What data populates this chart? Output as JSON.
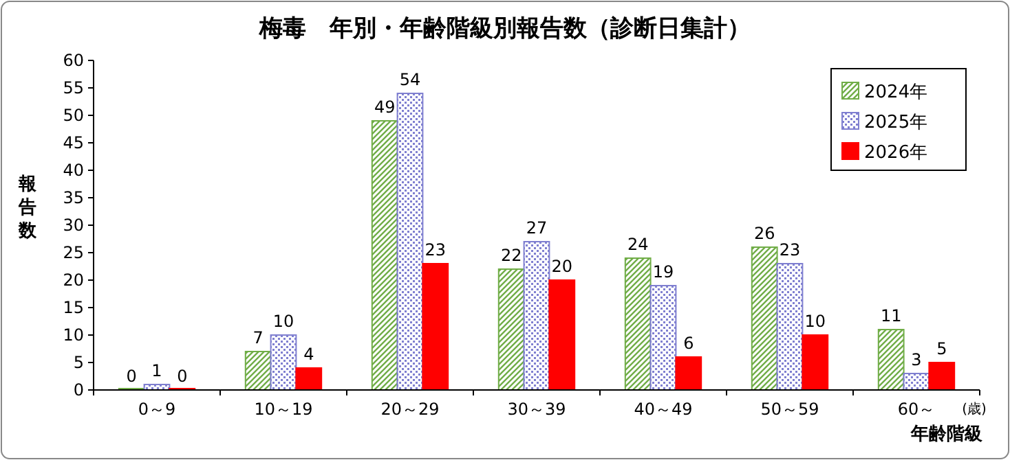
{
  "chart_data": {
    "type": "bar",
    "title": "梅毒　年別・年齢階級別報告数（診断日集計）",
    "xlabel": "年齢階級",
    "ylabel": "報告数",
    "annotations": [
      "(歳)"
    ],
    "categories": [
      "0～9",
      "10～19",
      "20～29",
      "30～39",
      "40～49",
      "50～59",
      "60～"
    ],
    "series": [
      {
        "name": "2024年",
        "color": "#70ad47",
        "values": [
          0,
          7,
          49,
          22,
          24,
          26,
          11
        ]
      },
      {
        "name": "2025年",
        "color": "#7f7fd0",
        "values": [
          1,
          10,
          54,
          27,
          19,
          23,
          3
        ]
      },
      {
        "name": "2026年",
        "color": "#ff0000",
        "values": [
          0,
          4,
          23,
          20,
          6,
          10,
          5
        ]
      }
    ],
    "ylim": [
      0,
      60
    ],
    "yticks": [
      0,
      5,
      10,
      15,
      20,
      25,
      30,
      35,
      40,
      45,
      50,
      55,
      60
    ],
    "data_labels": true,
    "legend": "top right"
  }
}
